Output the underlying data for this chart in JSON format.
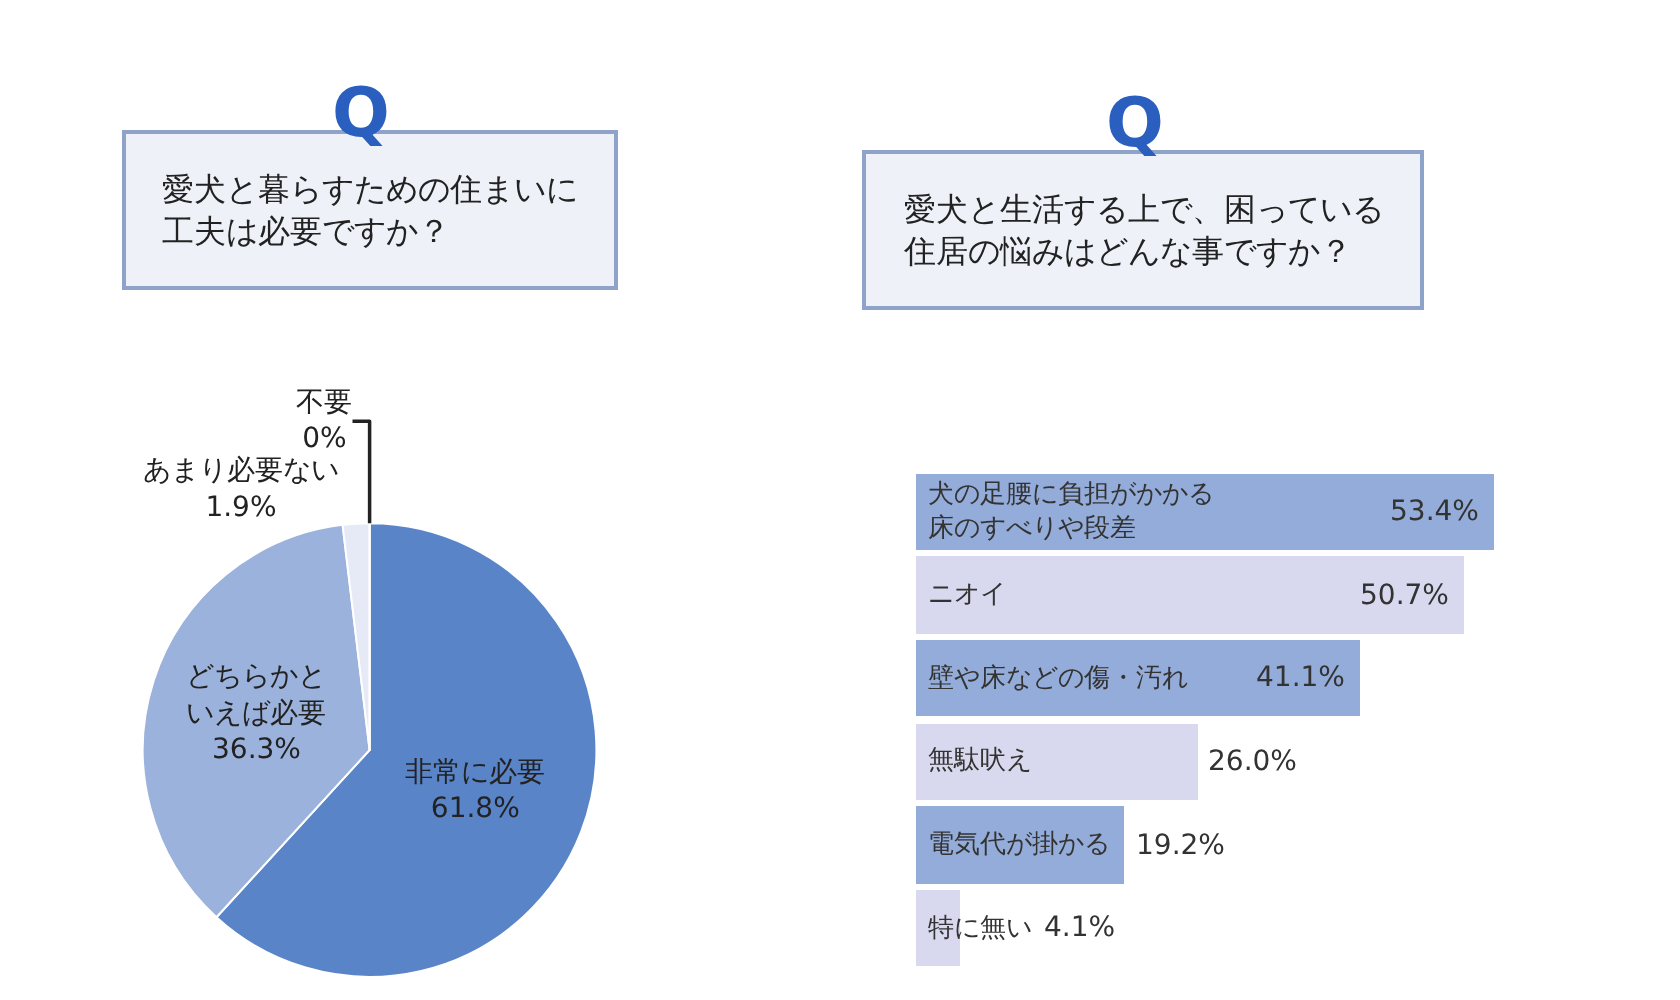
{
  "chart_data": [
    {
      "type": "pie",
      "title": "愛犬と暮らすための住まいに工夫は必要ですか？",
      "annotations": [
        "Q"
      ],
      "categories": [
        "非常に必要",
        "どちらかといえば必要",
        "あまり必要ない",
        "不要"
      ],
      "values": [
        61.8,
        36.3,
        1.9,
        0
      ],
      "value_labels": [
        "61.8%",
        "36.3%",
        "1.9%",
        "0%"
      ],
      "colors": [
        "#5a84c8",
        "#9bb2dc",
        "#e6eaf6",
        "#ffffff"
      ]
    },
    {
      "type": "bar",
      "orientation": "horizontal",
      "title": "愛犬と生活する上で、困っている住居の悩みはどんな事ですか？",
      "annotations": [
        "Q"
      ],
      "categories": [
        "犬の足腰に負担がかかる床のすべりや段差",
        "ニオイ",
        "壁や床などの傷・汚れ",
        "無駄吠え",
        "電気代が掛かる",
        "特に無い"
      ],
      "values": [
        53.4,
        50.7,
        41.1,
        26.0,
        19.2,
        4.1
      ],
      "value_labels": [
        "53.4%",
        "50.7%",
        "41.1%",
        "26.0%",
        "19.2%",
        "4.1%"
      ],
      "colors": [
        "#94acd9",
        "#d8d9ee",
        "#94acd9",
        "#d8d9ee",
        "#94acd9",
        "#d8d9ee"
      ]
    }
  ]
}
